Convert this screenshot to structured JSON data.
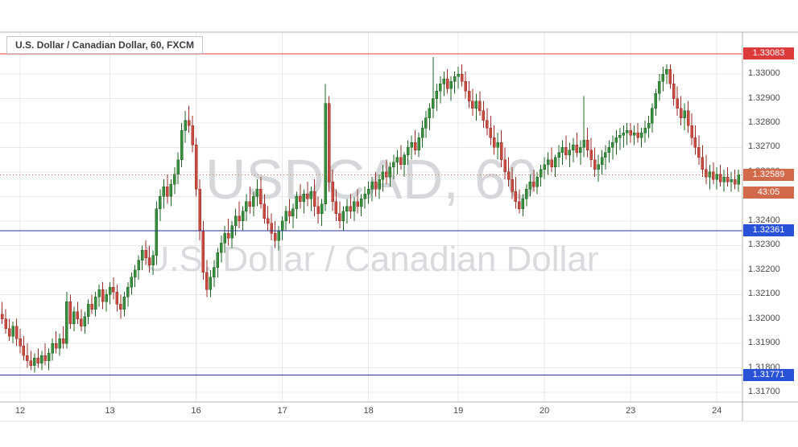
{
  "chart": {
    "legend": "U.S. Dollar / Canadian Dollar, 60, FXCM",
    "watermark_line1": "USDCAD, 60",
    "watermark_line2": "U.S. Dollar / Canadian Dollar"
  },
  "chart_data": {
    "type": "candlestick",
    "symbol": "USDCAD",
    "interval": "60",
    "exchange": "FXCM",
    "title": "U.S. Dollar / Canadian Dollar, 60, FXCM",
    "ylim": [
      1.31661,
      1.33171
    ],
    "price_tick_labels": [
      "1.33000",
      "1.32900",
      "1.32800",
      "1.32700",
      "1.32600",
      "1.32500",
      "1.32400",
      "1.32300",
      "1.32200",
      "1.32100",
      "1.32000",
      "1.31900",
      "1.31800",
      "1.31700"
    ],
    "time_axis": {
      "ticks": [
        {
          "index": 5,
          "label": "12"
        },
        {
          "index": 30,
          "label": "13"
        },
        {
          "index": 54,
          "label": "16"
        },
        {
          "index": 78,
          "label": "17"
        },
        {
          "index": 102,
          "label": "18"
        },
        {
          "index": 127,
          "label": "19"
        },
        {
          "index": 151,
          "label": "20"
        },
        {
          "index": 175,
          "label": "23"
        },
        {
          "index": 199,
          "label": "24"
        }
      ]
    },
    "levels": [
      {
        "name": "resistance-level",
        "price": 1.33083,
        "label": "1.33083",
        "line_color": "#e03c3c",
        "label_bg": "#dd3b3b",
        "style": "solid"
      },
      {
        "name": "support-level-upper",
        "price": 1.32361,
        "label": "1.32361",
        "line_color": "#283593",
        "label_bg": "#2a52d8",
        "style": "solid"
      },
      {
        "name": "support-level-lower",
        "price": 1.31771,
        "label": "1.31771",
        "line_color": "#283593",
        "label_bg": "#2a52d8",
        "style": "solid"
      }
    ],
    "last_price": {
      "price": 1.32589,
      "label": "1.32589",
      "countdown": "43:05",
      "line_color": "#d2694b",
      "label_bg": "#d2694b",
      "style": "dotted"
    },
    "colors": {
      "bull": "#388e3c",
      "bull_border": "#1f6423",
      "bear": "#c94b3f",
      "bear_border": "#992f27",
      "grid": "#e8e8e8",
      "frame": "#b3b3b3",
      "axis_text": "#4a4a4a",
      "watermark": "#d5d7da",
      "background": "#ffffff"
    },
    "candles": [
      [
        1.3202,
        1.3207,
        1.3198,
        1.32
      ],
      [
        1.32,
        1.3204,
        1.3194,
        1.3196
      ],
      [
        1.3196,
        1.32,
        1.3191,
        1.3193
      ],
      [
        1.3193,
        1.3199,
        1.319,
        1.3197
      ],
      [
        1.3197,
        1.32,
        1.3189,
        1.3192
      ],
      [
        1.3192,
        1.3196,
        1.3186,
        1.3189
      ],
      [
        1.3189,
        1.3193,
        1.3183,
        1.3185
      ],
      [
        1.3185,
        1.319,
        1.318,
        1.3183
      ],
      [
        1.3183,
        1.3187,
        1.3179,
        1.3181
      ],
      [
        1.3181,
        1.3186,
        1.3178,
        1.3184
      ],
      [
        1.3184,
        1.3188,
        1.318,
        1.3182
      ],
      [
        1.3182,
        1.3187,
        1.3179,
        1.3185
      ],
      [
        1.3185,
        1.319,
        1.3181,
        1.3183
      ],
      [
        1.3183,
        1.3188,
        1.3179,
        1.3186
      ],
      [
        1.3186,
        1.3192,
        1.3183,
        1.319
      ],
      [
        1.319,
        1.3195,
        1.3186,
        1.3188
      ],
      [
        1.3188,
        1.3194,
        1.3185,
        1.3192
      ],
      [
        1.3192,
        1.3197,
        1.3188,
        1.319
      ],
      [
        1.319,
        1.3211,
        1.3188,
        1.3207
      ],
      [
        1.3207,
        1.321,
        1.3196,
        1.3198
      ],
      [
        1.3198,
        1.3205,
        1.3195,
        1.3203
      ],
      [
        1.3203,
        1.3207,
        1.3198,
        1.32
      ],
      [
        1.32,
        1.3204,
        1.3195,
        1.3197
      ],
      [
        1.3197,
        1.3203,
        1.3194,
        1.3201
      ],
      [
        1.3201,
        1.3208,
        1.3198,
        1.3206
      ],
      [
        1.3206,
        1.321,
        1.3202,
        1.3204
      ],
      [
        1.3204,
        1.3211,
        1.3201,
        1.3209
      ],
      [
        1.3209,
        1.3214,
        1.3205,
        1.3212
      ],
      [
        1.3212,
        1.3215,
        1.3204,
        1.3207
      ],
      [
        1.3207,
        1.3212,
        1.3203,
        1.321
      ],
      [
        1.321,
        1.3215,
        1.3206,
        1.3213
      ],
      [
        1.3213,
        1.3217,
        1.3208,
        1.3211
      ],
      [
        1.3211,
        1.3214,
        1.3203,
        1.3206
      ],
      [
        1.3206,
        1.321,
        1.32,
        1.3204
      ],
      [
        1.3204,
        1.3211,
        1.3201,
        1.3209
      ],
      [
        1.3209,
        1.3215,
        1.3205,
        1.3213
      ],
      [
        1.3213,
        1.3219,
        1.321,
        1.3217
      ],
      [
        1.3217,
        1.3222,
        1.3213,
        1.322
      ],
      [
        1.322,
        1.3226,
        1.3216,
        1.3224
      ],
      [
        1.3224,
        1.323,
        1.322,
        1.3228
      ],
      [
        1.3228,
        1.3232,
        1.3222,
        1.3225
      ],
      [
        1.3225,
        1.323,
        1.3219,
        1.3222
      ],
      [
        1.3222,
        1.3228,
        1.3218,
        1.3226
      ],
      [
        1.3226,
        1.3248,
        1.3222,
        1.3245
      ],
      [
        1.3245,
        1.3253,
        1.324,
        1.325
      ],
      [
        1.325,
        1.3257,
        1.3245,
        1.3254
      ],
      [
        1.3254,
        1.3259,
        1.3247,
        1.325
      ],
      [
        1.325,
        1.3257,
        1.3246,
        1.3255
      ],
      [
        1.3255,
        1.3262,
        1.3251,
        1.3259
      ],
      [
        1.3259,
        1.3268,
        1.3255,
        1.3265
      ],
      [
        1.3265,
        1.328,
        1.3262,
        1.3277
      ],
      [
        1.3277,
        1.3285,
        1.3272,
        1.3281
      ],
      [
        1.3281,
        1.3287,
        1.3276,
        1.3279
      ],
      [
        1.3279,
        1.3283,
        1.3268,
        1.3271
      ],
      [
        1.3271,
        1.3274,
        1.325,
        1.3253
      ],
      [
        1.3253,
        1.3257,
        1.3232,
        1.3236
      ],
      [
        1.3236,
        1.324,
        1.3216,
        1.3219
      ],
      [
        1.3219,
        1.3224,
        1.3209,
        1.3212
      ],
      [
        1.3212,
        1.322,
        1.3209,
        1.3217
      ],
      [
        1.3217,
        1.3224,
        1.3213,
        1.3221
      ],
      [
        1.3221,
        1.3229,
        1.3217,
        1.3227
      ],
      [
        1.3227,
        1.3234,
        1.3223,
        1.3231
      ],
      [
        1.3231,
        1.3238,
        1.3227,
        1.3235
      ],
      [
        1.3235,
        1.3241,
        1.323,
        1.3233
      ],
      [
        1.3233,
        1.324,
        1.3229,
        1.3238
      ],
      [
        1.3238,
        1.3245,
        1.3234,
        1.3242
      ],
      [
        1.3242,
        1.3248,
        1.3237,
        1.324
      ],
      [
        1.324,
        1.3246,
        1.3236,
        1.3244
      ],
      [
        1.3244,
        1.3251,
        1.324,
        1.3248
      ],
      [
        1.3248,
        1.3254,
        1.3243,
        1.3246
      ],
      [
        1.3246,
        1.3252,
        1.3242,
        1.325
      ],
      [
        1.325,
        1.3257,
        1.3246,
        1.3253
      ],
      [
        1.3253,
        1.3258,
        1.3245,
        1.3247
      ],
      [
        1.3247,
        1.3251,
        1.3239,
        1.3241
      ],
      [
        1.3241,
        1.3246,
        1.3236,
        1.3239
      ],
      [
        1.3239,
        1.3243,
        1.3232,
        1.3235
      ],
      [
        1.3235,
        1.324,
        1.3229,
        1.3232
      ],
      [
        1.3232,
        1.3238,
        1.3228,
        1.3236
      ],
      [
        1.3236,
        1.3242,
        1.3232,
        1.324
      ],
      [
        1.324,
        1.3246,
        1.3236,
        1.3244
      ],
      [
        1.3244,
        1.3249,
        1.3239,
        1.3242
      ],
      [
        1.3242,
        1.3247,
        1.3237,
        1.3245
      ],
      [
        1.3245,
        1.3252,
        1.3241,
        1.325
      ],
      [
        1.325,
        1.3255,
        1.3245,
        1.3248
      ],
      [
        1.3248,
        1.3253,
        1.3243,
        1.3251
      ],
      [
        1.3251,
        1.3256,
        1.3246,
        1.3249
      ],
      [
        1.3249,
        1.3254,
        1.3244,
        1.3252
      ],
      [
        1.3252,
        1.3257,
        1.3242,
        1.3246
      ],
      [
        1.3246,
        1.325,
        1.3239,
        1.3243
      ],
      [
        1.3243,
        1.3249,
        1.3238,
        1.3247
      ],
      [
        1.3247,
        1.3296,
        1.3244,
        1.3288
      ],
      [
        1.3288,
        1.3291,
        1.3252,
        1.3256
      ],
      [
        1.3256,
        1.3261,
        1.3244,
        1.3248
      ],
      [
        1.3248,
        1.3253,
        1.324,
        1.3243
      ],
      [
        1.3243,
        1.3248,
        1.3237,
        1.324
      ],
      [
        1.324,
        1.3246,
        1.3236,
        1.3244
      ],
      [
        1.3244,
        1.3249,
        1.3239,
        1.3246
      ],
      [
        1.3246,
        1.3251,
        1.3241,
        1.3244
      ],
      [
        1.3244,
        1.325,
        1.324,
        1.3248
      ],
      [
        1.3248,
        1.3253,
        1.3243,
        1.3246
      ],
      [
        1.3246,
        1.3251,
        1.3242,
        1.3249
      ],
      [
        1.3249,
        1.3254,
        1.3245,
        1.3251
      ],
      [
        1.3251,
        1.3256,
        1.3247,
        1.3253
      ],
      [
        1.3253,
        1.3258,
        1.3248,
        1.3256
      ],
      [
        1.3256,
        1.326,
        1.325,
        1.3253
      ],
      [
        1.3253,
        1.3259,
        1.3249,
        1.3257
      ],
      [
        1.3257,
        1.3263,
        1.3252,
        1.326
      ],
      [
        1.326,
        1.3265,
        1.3255,
        1.3258
      ],
      [
        1.3258,
        1.3264,
        1.3254,
        1.3262
      ],
      [
        1.3262,
        1.3267,
        1.3257,
        1.3264
      ],
      [
        1.3264,
        1.3269,
        1.3259,
        1.3266
      ],
      [
        1.3266,
        1.3271,
        1.3261,
        1.3263
      ],
      [
        1.3263,
        1.3268,
        1.3258,
        1.3267
      ],
      [
        1.3267,
        1.3273,
        1.3263,
        1.327
      ],
      [
        1.327,
        1.3275,
        1.3265,
        1.3272
      ],
      [
        1.3272,
        1.3277,
        1.3267,
        1.3269
      ],
      [
        1.3269,
        1.3276,
        1.3266,
        1.3274
      ],
      [
        1.3274,
        1.3281,
        1.327,
        1.3278
      ],
      [
        1.3278,
        1.3285,
        1.3274,
        1.3282
      ],
      [
        1.3282,
        1.3288,
        1.3277,
        1.3286
      ],
      [
        1.3286,
        1.3307,
        1.3282,
        1.329
      ],
      [
        1.329,
        1.3296,
        1.3285,
        1.3293
      ],
      [
        1.3293,
        1.3299,
        1.3288,
        1.3296
      ],
      [
        1.3296,
        1.3301,
        1.3291,
        1.3298
      ],
      [
        1.3298,
        1.3302,
        1.3292,
        1.3294
      ],
      [
        1.3294,
        1.3299,
        1.3289,
        1.3297
      ],
      [
        1.3297,
        1.3301,
        1.3292,
        1.3299
      ],
      [
        1.3299,
        1.3303,
        1.3294,
        1.33
      ],
      [
        1.33,
        1.3304,
        1.3295,
        1.3297
      ],
      [
        1.3297,
        1.3301,
        1.329,
        1.3293
      ],
      [
        1.3293,
        1.3297,
        1.3286,
        1.3289
      ],
      [
        1.3289,
        1.3294,
        1.3283,
        1.3286
      ],
      [
        1.3286,
        1.3292,
        1.3281,
        1.3289
      ],
      [
        1.3289,
        1.3293,
        1.3283,
        1.3285
      ],
      [
        1.3285,
        1.3289,
        1.3278,
        1.3281
      ],
      [
        1.3281,
        1.3286,
        1.3275,
        1.3278
      ],
      [
        1.3278,
        1.3283,
        1.3271,
        1.3274
      ],
      [
        1.3274,
        1.3279,
        1.3267,
        1.327
      ],
      [
        1.327,
        1.3276,
        1.3265,
        1.3272
      ],
      [
        1.3272,
        1.3277,
        1.3262,
        1.3265
      ],
      [
        1.3265,
        1.327,
        1.3257,
        1.326
      ],
      [
        1.326,
        1.3266,
        1.3254,
        1.3257
      ],
      [
        1.3257,
        1.3262,
        1.3249,
        1.3252
      ],
      [
        1.3252,
        1.3258,
        1.3245,
        1.3248
      ],
      [
        1.3248,
        1.3253,
        1.3243,
        1.3245
      ],
      [
        1.3245,
        1.3251,
        1.3242,
        1.3249
      ],
      [
        1.3249,
        1.3255,
        1.3246,
        1.3253
      ],
      [
        1.3253,
        1.3259,
        1.325,
        1.3256
      ],
      [
        1.3256,
        1.3261,
        1.3252,
        1.3254
      ],
      [
        1.3254,
        1.326,
        1.3251,
        1.3258
      ],
      [
        1.3258,
        1.3263,
        1.3254,
        1.3261
      ],
      [
        1.3261,
        1.3266,
        1.3257,
        1.3263
      ],
      [
        1.3263,
        1.3268,
        1.3259,
        1.3265
      ],
      [
        1.3265,
        1.327,
        1.326,
        1.3262
      ],
      [
        1.3262,
        1.3267,
        1.3258,
        1.3266
      ],
      [
        1.3266,
        1.3271,
        1.3262,
        1.3268
      ],
      [
        1.3268,
        1.3273,
        1.3263,
        1.327
      ],
      [
        1.327,
        1.3275,
        1.3265,
        1.3267
      ],
      [
        1.3267,
        1.3272,
        1.3262,
        1.3269
      ],
      [
        1.3269,
        1.3274,
        1.3264,
        1.3271
      ],
      [
        1.3271,
        1.3276,
        1.3266,
        1.3268
      ],
      [
        1.3268,
        1.3273,
        1.3263,
        1.327
      ],
      [
        1.327,
        1.3291,
        1.3266,
        1.3273
      ],
      [
        1.3273,
        1.3278,
        1.3266,
        1.3269
      ],
      [
        1.3269,
        1.3274,
        1.3262,
        1.3265
      ],
      [
        1.3265,
        1.327,
        1.3258,
        1.3261
      ],
      [
        1.3261,
        1.3267,
        1.3256,
        1.3263
      ],
      [
        1.3263,
        1.3269,
        1.3259,
        1.3266
      ],
      [
        1.3266,
        1.3271,
        1.3261,
        1.3268
      ],
      [
        1.3268,
        1.3273,
        1.3264,
        1.327
      ],
      [
        1.327,
        1.3275,
        1.3265,
        1.3272
      ],
      [
        1.3272,
        1.3277,
        1.3267,
        1.3274
      ],
      [
        1.3274,
        1.3278,
        1.3269,
        1.3275
      ],
      [
        1.3275,
        1.3279,
        1.327,
        1.3276
      ],
      [
        1.3276,
        1.328,
        1.3271,
        1.3277
      ],
      [
        1.3277,
        1.328,
        1.3272,
        1.3275
      ],
      [
        1.3275,
        1.3279,
        1.3271,
        1.3276
      ],
      [
        1.3276,
        1.328,
        1.3272,
        1.3274
      ],
      [
        1.3274,
        1.3278,
        1.327,
        1.3276
      ],
      [
        1.3276,
        1.3281,
        1.3272,
        1.3278
      ],
      [
        1.3278,
        1.3283,
        1.3274,
        1.328
      ],
      [
        1.328,
        1.3288,
        1.3276,
        1.3286
      ],
      [
        1.3286,
        1.3294,
        1.3283,
        1.3292
      ],
      [
        1.3292,
        1.33,
        1.3289,
        1.3297
      ],
      [
        1.3297,
        1.3303,
        1.3293,
        1.33
      ],
      [
        1.33,
        1.3304,
        1.3296,
        1.3302
      ],
      [
        1.3302,
        1.3304,
        1.3294,
        1.3296
      ],
      [
        1.3296,
        1.33,
        1.3287,
        1.329
      ],
      [
        1.329,
        1.3295,
        1.3283,
        1.3286
      ],
      [
        1.3286,
        1.3291,
        1.3279,
        1.3282
      ],
      [
        1.3282,
        1.3288,
        1.3277,
        1.3285
      ],
      [
        1.3285,
        1.3289,
        1.3276,
        1.3279
      ],
      [
        1.3279,
        1.3284,
        1.3271,
        1.3274
      ],
      [
        1.3274,
        1.3279,
        1.3267,
        1.327
      ],
      [
        1.327,
        1.3275,
        1.3263,
        1.3266
      ],
      [
        1.3266,
        1.3271,
        1.3258,
        1.3261
      ],
      [
        1.3261,
        1.3267,
        1.3255,
        1.3258
      ],
      [
        1.3258,
        1.3263,
        1.3253,
        1.326
      ],
      [
        1.326,
        1.3264,
        1.3255,
        1.3257
      ],
      [
        1.3257,
        1.3262,
        1.3253,
        1.3259
      ],
      [
        1.3259,
        1.3263,
        1.3254,
        1.3256
      ],
      [
        1.3256,
        1.3261,
        1.3252,
        1.3258
      ],
      [
        1.3258,
        1.3262,
        1.3254,
        1.3256
      ],
      [
        1.3256,
        1.326,
        1.3252,
        1.3257
      ],
      [
        1.3257,
        1.3261,
        1.3253,
        1.3255
      ],
      [
        1.3255,
        1.3261,
        1.3252,
        1.32589
      ]
    ]
  }
}
